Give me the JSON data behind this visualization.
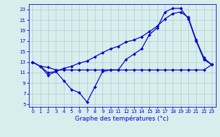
{
  "xlabel": "Graphe des températures (°c)",
  "background_color": "#d8eeed",
  "line_color": "#0000cc",
  "grid_color": "#aacccc",
  "xlim": [
    -0.5,
    23.5
  ],
  "ylim": [
    4.5,
    24.0
  ],
  "yticks": [
    5,
    7,
    9,
    11,
    13,
    15,
    17,
    19,
    21,
    23
  ],
  "xticks": [
    0,
    1,
    2,
    3,
    4,
    5,
    6,
    7,
    8,
    9,
    10,
    11,
    12,
    13,
    14,
    15,
    16,
    17,
    18,
    19,
    20,
    21,
    22,
    23
  ],
  "series1_x": [
    0,
    1,
    2,
    3,
    4,
    5,
    6,
    7,
    8,
    9,
    10,
    11,
    12,
    13,
    14,
    15,
    16,
    17,
    18,
    19,
    20,
    21,
    22,
    23
  ],
  "series1_y": [
    13.0,
    12.2,
    10.5,
    11.2,
    9.5,
    7.8,
    7.2,
    5.4,
    8.3,
    11.2,
    11.5,
    11.5,
    13.5,
    14.5,
    15.5,
    18.2,
    19.5,
    22.5,
    23.2,
    23.2,
    21.2,
    17.0,
    13.5,
    12.5
  ],
  "series2_x": [
    0,
    1,
    2,
    3,
    4,
    5,
    6,
    7,
    8,
    9,
    10,
    11,
    12,
    13,
    14,
    15,
    16,
    17,
    18,
    19,
    20,
    21,
    22,
    23
  ],
  "series2_y": [
    13.0,
    12.2,
    12.0,
    11.5,
    11.5,
    11.5,
    11.5,
    11.5,
    11.5,
    11.5,
    11.5,
    11.5,
    11.5,
    11.5,
    11.5,
    11.5,
    11.5,
    11.5,
    11.5,
    11.5,
    11.5,
    11.5,
    11.5,
    12.5
  ],
  "series3_x": [
    0,
    1,
    2,
    3,
    4,
    5,
    6,
    7,
    8,
    9,
    10,
    11,
    12,
    13,
    14,
    15,
    16,
    17,
    18,
    19,
    20,
    21,
    22,
    23
  ],
  "series3_y": [
    13.0,
    12.2,
    11.0,
    11.2,
    11.8,
    12.2,
    12.8,
    13.2,
    14.0,
    14.8,
    15.5,
    16.0,
    16.8,
    17.2,
    17.8,
    18.8,
    19.8,
    21.2,
    22.2,
    22.5,
    21.5,
    17.2,
    13.8,
    12.5
  ],
  "lw": 0.9,
  "ms": 2.2,
  "xlabel_fontsize": 6.5,
  "tick_fontsize": 5.0
}
